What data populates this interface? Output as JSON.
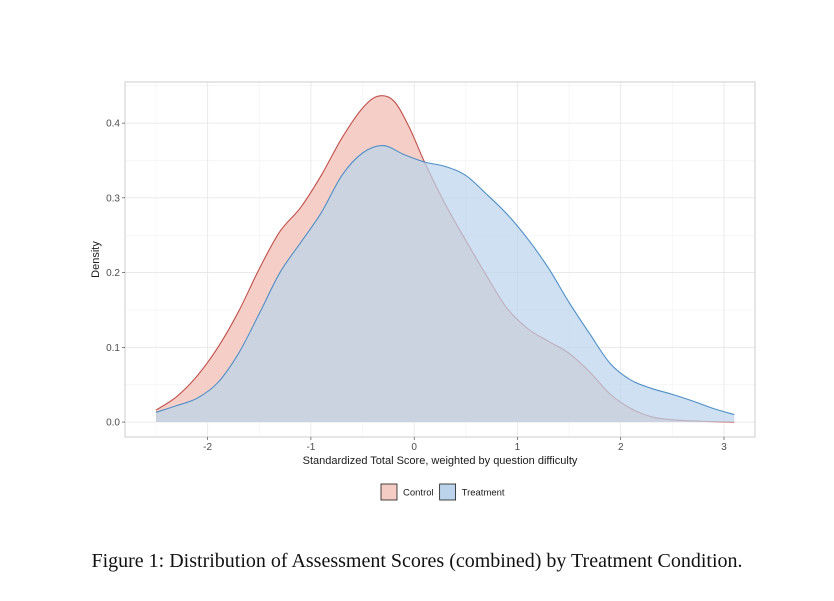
{
  "caption": "Figure 1: Distribution of Assessment Scores (combined) by Treatment Condition.",
  "chart_data": {
    "type": "area",
    "title": "",
    "xlabel": "Standardized Total Score, weighted by question difficulty",
    "ylabel": "Density",
    "xlim": [
      -2.8,
      3.3
    ],
    "ylim": [
      -0.02,
      0.455
    ],
    "x_ticks": [
      -2,
      -1,
      0,
      1,
      2,
      3
    ],
    "x_tick_labels": [
      "-2",
      "-1",
      "0",
      "1",
      "2",
      "3"
    ],
    "y_ticks": [
      0.0,
      0.1,
      0.2,
      0.3,
      0.4
    ],
    "y_tick_labels": [
      "0.0",
      "0.1",
      "0.2",
      "0.3",
      "0.4"
    ],
    "grid": true,
    "legend_position": "bottom",
    "series": [
      {
        "name": "Control",
        "fill": "#F4CCC4",
        "stroke": "#C0504D",
        "points": [
          [
            -2.5,
            0.016
          ],
          [
            -2.3,
            0.034
          ],
          [
            -2.1,
            0.062
          ],
          [
            -1.9,
            0.1
          ],
          [
            -1.7,
            0.148
          ],
          [
            -1.5,
            0.205
          ],
          [
            -1.3,
            0.255
          ],
          [
            -1.1,
            0.287
          ],
          [
            -0.9,
            0.33
          ],
          [
            -0.7,
            0.38
          ],
          [
            -0.5,
            0.42
          ],
          [
            -0.35,
            0.436
          ],
          [
            -0.2,
            0.43
          ],
          [
            -0.05,
            0.395
          ],
          [
            0.1,
            0.348
          ],
          [
            0.3,
            0.292
          ],
          [
            0.5,
            0.243
          ],
          [
            0.7,
            0.196
          ],
          [
            0.9,
            0.152
          ],
          [
            1.1,
            0.125
          ],
          [
            1.3,
            0.108
          ],
          [
            1.5,
            0.092
          ],
          [
            1.7,
            0.067
          ],
          [
            1.9,
            0.037
          ],
          [
            2.1,
            0.018
          ],
          [
            2.3,
            0.007
          ],
          [
            2.5,
            0.003
          ],
          [
            2.8,
            0.001
          ],
          [
            3.1,
            0.0
          ]
        ]
      },
      {
        "name": "Treatment",
        "fill": "#BBD4EB",
        "stroke": "#4F8FC6",
        "points": [
          [
            -2.5,
            0.013
          ],
          [
            -2.3,
            0.022
          ],
          [
            -2.1,
            0.032
          ],
          [
            -1.9,
            0.053
          ],
          [
            -1.7,
            0.092
          ],
          [
            -1.5,
            0.145
          ],
          [
            -1.3,
            0.2
          ],
          [
            -1.1,
            0.24
          ],
          [
            -0.9,
            0.28
          ],
          [
            -0.7,
            0.33
          ],
          [
            -0.5,
            0.36
          ],
          [
            -0.3,
            0.37
          ],
          [
            -0.1,
            0.358
          ],
          [
            0.1,
            0.348
          ],
          [
            0.3,
            0.342
          ],
          [
            0.5,
            0.33
          ],
          [
            0.7,
            0.305
          ],
          [
            0.9,
            0.278
          ],
          [
            1.1,
            0.245
          ],
          [
            1.3,
            0.206
          ],
          [
            1.5,
            0.16
          ],
          [
            1.7,
            0.118
          ],
          [
            1.9,
            0.078
          ],
          [
            2.1,
            0.056
          ],
          [
            2.3,
            0.045
          ],
          [
            2.5,
            0.037
          ],
          [
            2.7,
            0.028
          ],
          [
            2.9,
            0.018
          ],
          [
            3.1,
            0.01
          ]
        ]
      }
    ]
  }
}
